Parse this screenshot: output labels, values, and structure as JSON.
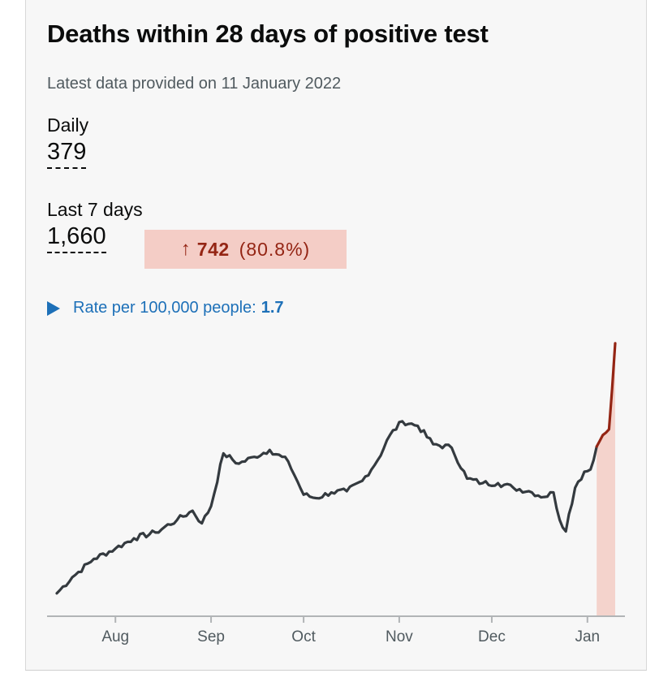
{
  "title": "Deaths within 28 days of positive test",
  "subtitle": "Latest data provided on 11 January 2022",
  "daily": {
    "label": "Daily",
    "value": "379"
  },
  "last7": {
    "label": "Last 7 days",
    "value": "1,660",
    "change_arrow": "↑",
    "change_value": "742",
    "change_pct": "(80.8%)"
  },
  "rate": {
    "label": "Rate per 100,000 people:",
    "value": "1.7"
  },
  "colors": {
    "line": "#343a3f",
    "recent_line": "#942514",
    "recent_fill": "#f4d3cc",
    "axis": "#b1b4b6",
    "badge_bg": "#f4cdc6",
    "badge_text": "#942514",
    "link": "#1d70b8"
  },
  "chart_data": {
    "type": "line",
    "title": "Deaths within 28 days of positive test",
    "xlabel": "",
    "ylabel": "",
    "ylim": [
      0,
      240
    ],
    "x_start": "2021-07-13",
    "x_end": "2022-01-10",
    "recent_start": "2022-01-04",
    "tick_labels": [
      "Aug",
      "Sep",
      "Oct",
      "Nov",
      "Dec",
      "Jan"
    ],
    "tick_dates": [
      "2021-08-01",
      "2021-09-01",
      "2021-10-01",
      "2021-11-01",
      "2021-12-01",
      "2022-01-01"
    ],
    "anchors": [
      [
        "2021-07-13",
        20
      ],
      [
        "2021-07-18",
        34
      ],
      [
        "2021-07-25",
        50
      ],
      [
        "2021-08-01",
        59
      ],
      [
        "2021-08-07",
        68
      ],
      [
        "2021-08-14",
        73
      ],
      [
        "2021-08-21",
        84
      ],
      [
        "2021-08-26",
        92
      ],
      [
        "2021-08-29",
        81
      ],
      [
        "2021-09-01",
        96
      ],
      [
        "2021-09-05",
        142
      ],
      [
        "2021-09-10",
        133
      ],
      [
        "2021-09-15",
        139
      ],
      [
        "2021-09-20",
        145
      ],
      [
        "2021-09-26",
        135
      ],
      [
        "2021-10-01",
        106
      ],
      [
        "2021-10-05",
        103
      ],
      [
        "2021-10-10",
        108
      ],
      [
        "2021-10-15",
        109
      ],
      [
        "2021-10-20",
        118
      ],
      [
        "2021-10-25",
        136
      ],
      [
        "2021-10-29",
        158
      ],
      [
        "2021-11-02",
        170
      ],
      [
        "2021-11-07",
        166
      ],
      [
        "2021-11-12",
        150
      ],
      [
        "2021-11-18",
        147
      ],
      [
        "2021-11-23",
        120
      ],
      [
        "2021-11-28",
        116
      ],
      [
        "2021-12-03",
        116
      ],
      [
        "2021-12-08",
        112
      ],
      [
        "2021-12-13",
        109
      ],
      [
        "2021-12-18",
        104
      ],
      [
        "2021-12-21",
        108
      ],
      [
        "2021-12-23",
        84
      ],
      [
        "2021-12-25",
        74
      ],
      [
        "2021-12-26",
        89
      ],
      [
        "2021-12-28",
        112
      ],
      [
        "2021-12-31",
        126
      ],
      [
        "2022-01-02",
        128
      ],
      [
        "2022-01-04",
        148
      ],
      [
        "2022-01-06",
        158
      ],
      [
        "2022-01-08",
        163
      ],
      [
        "2022-01-10",
        238
      ]
    ]
  }
}
